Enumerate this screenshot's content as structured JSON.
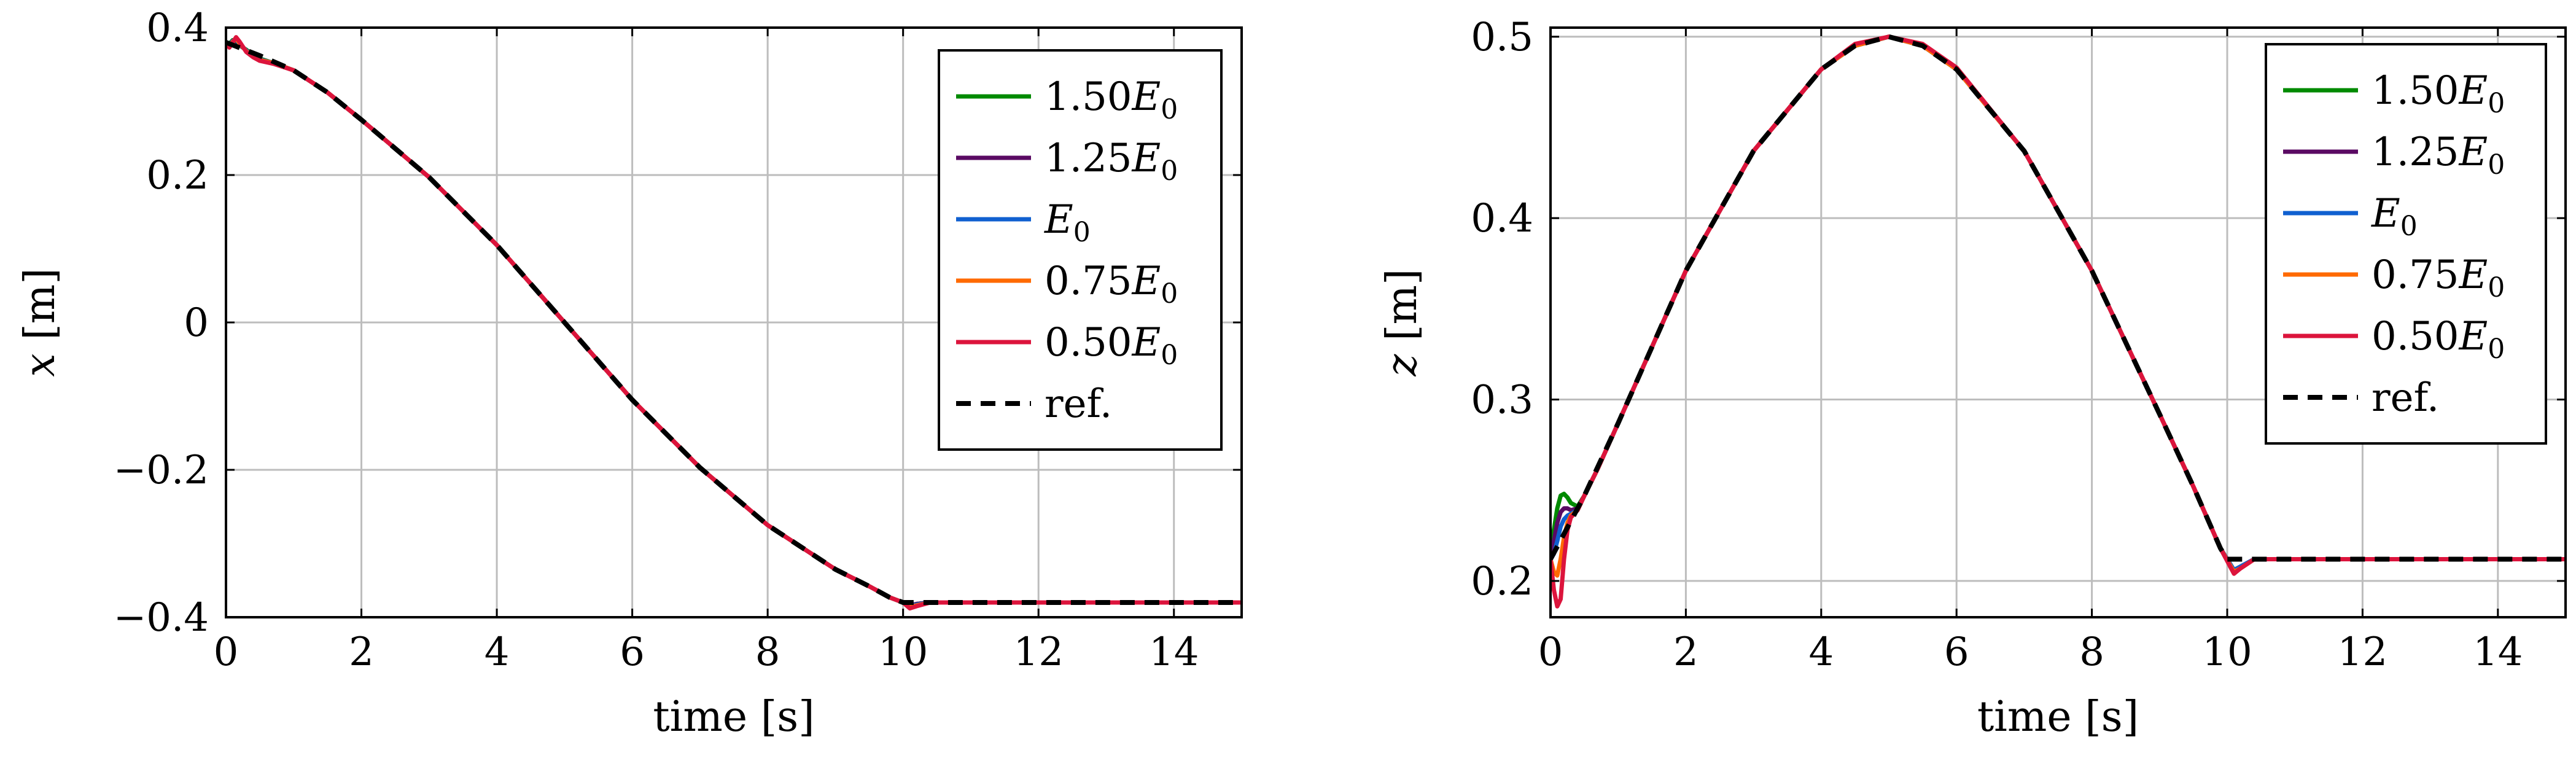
{
  "chart_data": [
    {
      "type": "line",
      "xlabel": "time [s]",
      "ylabel_var": "x",
      "ylabel_unit": " [m]",
      "xlim": [
        0,
        15
      ],
      "ylim": [
        -0.4,
        0.4
      ],
      "xticks": [
        0,
        2,
        4,
        6,
        8,
        10,
        12,
        14
      ],
      "yticks": [
        -0.4,
        -0.2,
        0,
        0.2,
        0.4
      ],
      "ytick_labels": [
        "−0.4",
        "−0.2",
        "0",
        "0.2",
        "0.4"
      ],
      "grid": true,
      "legend_position": "top-right",
      "series": [
        {
          "name": "1.50E0",
          "label_main": "1.50",
          "label_var": "E",
          "label_sub": "0",
          "color": "#008a00",
          "dash": false,
          "x": [
            0,
            0.05,
            0.1,
            0.15,
            0.2,
            0.3,
            0.4,
            0.5,
            0.7,
            1,
            1.5,
            2,
            3,
            4,
            5,
            6,
            7,
            8,
            9,
            9.5,
            9.8,
            10,
            10.1,
            10.2,
            10.4,
            11,
            12,
            13,
            14,
            15
          ],
          "y": [
            0.38,
            0.378,
            0.383,
            0.382,
            0.376,
            0.37,
            0.362,
            0.358,
            0.352,
            0.342,
            0.312,
            0.275,
            0.197,
            0.105,
            0.0,
            -0.105,
            -0.197,
            -0.275,
            -0.335,
            -0.358,
            -0.373,
            -0.38,
            -0.384,
            -0.382,
            -0.38,
            -0.38,
            -0.38,
            -0.38,
            -0.38,
            -0.38
          ]
        },
        {
          "name": "1.25E0",
          "label_main": "1.25",
          "label_var": "E",
          "label_sub": "0",
          "color": "#5a0a63",
          "dash": false,
          "x": [
            0,
            0.05,
            0.1,
            0.15,
            0.2,
            0.3,
            0.4,
            0.5,
            0.7,
            1,
            1.5,
            2,
            3,
            4,
            5,
            6,
            7,
            8,
            9,
            9.5,
            9.8,
            10,
            10.1,
            10.2,
            10.4,
            11,
            12,
            13,
            14,
            15
          ],
          "y": [
            0.38,
            0.377,
            0.382,
            0.383,
            0.377,
            0.369,
            0.362,
            0.357,
            0.352,
            0.342,
            0.312,
            0.275,
            0.197,
            0.105,
            0.0,
            -0.105,
            -0.197,
            -0.275,
            -0.335,
            -0.358,
            -0.373,
            -0.38,
            -0.384,
            -0.382,
            -0.38,
            -0.38,
            -0.38,
            -0.38,
            -0.38,
            -0.38
          ]
        },
        {
          "name": "E0",
          "label_main": "",
          "label_var": "E",
          "label_sub": "0",
          "color": "#1060d0",
          "dash": false,
          "x": [
            0,
            0.05,
            0.1,
            0.15,
            0.2,
            0.3,
            0.4,
            0.5,
            0.7,
            1,
            1.5,
            2,
            3,
            4,
            5,
            6,
            7,
            8,
            9,
            9.5,
            9.8,
            10,
            10.1,
            10.2,
            10.4,
            11,
            12,
            13,
            14,
            15
          ],
          "y": [
            0.38,
            0.376,
            0.382,
            0.384,
            0.378,
            0.369,
            0.361,
            0.357,
            0.352,
            0.342,
            0.312,
            0.275,
            0.197,
            0.105,
            0.0,
            -0.105,
            -0.197,
            -0.275,
            -0.335,
            -0.358,
            -0.373,
            -0.38,
            -0.385,
            -0.383,
            -0.38,
            -0.38,
            -0.38,
            -0.38,
            -0.38,
            -0.38
          ]
        },
        {
          "name": "0.75E0",
          "label_main": "0.75",
          "label_var": "E",
          "label_sub": "0",
          "color": "#ff6a00",
          "dash": false,
          "x": [
            0,
            0.05,
            0.1,
            0.15,
            0.2,
            0.3,
            0.4,
            0.5,
            0.7,
            1,
            1.5,
            2,
            3,
            4,
            5,
            6,
            7,
            8,
            9,
            9.5,
            9.8,
            10,
            10.1,
            10.2,
            10.4,
            11,
            12,
            13,
            14,
            15
          ],
          "y": [
            0.38,
            0.375,
            0.381,
            0.385,
            0.379,
            0.368,
            0.361,
            0.356,
            0.352,
            0.342,
            0.312,
            0.275,
            0.197,
            0.105,
            0.0,
            -0.105,
            -0.197,
            -0.275,
            -0.335,
            -0.358,
            -0.373,
            -0.38,
            -0.386,
            -0.384,
            -0.38,
            -0.38,
            -0.38,
            -0.38,
            -0.38,
            -0.38
          ]
        },
        {
          "name": "0.50E0",
          "label_main": "0.50",
          "label_var": "E",
          "label_sub": "0",
          "color": "#dc143c",
          "dash": false,
          "x": [
            0,
            0.05,
            0.1,
            0.15,
            0.2,
            0.3,
            0.4,
            0.5,
            0.7,
            1,
            1.5,
            2,
            3,
            4,
            5,
            6,
            7,
            8,
            9,
            9.5,
            9.8,
            10,
            10.1,
            10.2,
            10.4,
            11,
            12,
            13,
            14,
            15
          ],
          "y": [
            0.38,
            0.373,
            0.38,
            0.387,
            0.381,
            0.367,
            0.36,
            0.355,
            0.351,
            0.342,
            0.312,
            0.275,
            0.197,
            0.105,
            0.0,
            -0.105,
            -0.197,
            -0.275,
            -0.335,
            -0.358,
            -0.373,
            -0.38,
            -0.388,
            -0.385,
            -0.38,
            -0.38,
            -0.38,
            -0.38,
            -0.38,
            -0.38
          ]
        },
        {
          "name": "ref.",
          "label_main": "ref.",
          "label_var": "",
          "label_sub": "",
          "color": "#000000",
          "dash": true,
          "x": [
            0,
            0.5,
            1,
            1.5,
            2,
            3,
            4,
            5,
            6,
            7,
            8,
            9,
            9.5,
            9.8,
            10,
            10.3,
            11,
            12,
            13,
            14,
            15
          ],
          "y": [
            0.38,
            0.362,
            0.342,
            0.312,
            0.275,
            0.197,
            0.105,
            0.0,
            -0.105,
            -0.197,
            -0.275,
            -0.335,
            -0.358,
            -0.373,
            -0.38,
            -0.38,
            -0.38,
            -0.38,
            -0.38,
            -0.38,
            -0.38
          ]
        }
      ]
    },
    {
      "type": "line",
      "xlabel": "time [s]",
      "ylabel_var": "z",
      "ylabel_unit": " [m]",
      "xlim": [
        0,
        15
      ],
      "ylim": [
        0.18,
        0.505
      ],
      "xticks": [
        0,
        2,
        4,
        6,
        8,
        10,
        12,
        14
      ],
      "yticks": [
        0.2,
        0.3,
        0.4,
        0.5
      ],
      "ytick_labels": [
        "0.2",
        "0.3",
        "0.4",
        "0.5"
      ],
      "grid": true,
      "legend_position": "top-right",
      "series": [
        {
          "name": "1.50E0",
          "label_main": "1.50",
          "label_var": "E",
          "label_sub": "0",
          "color": "#008a00",
          "dash": false,
          "x": [
            0,
            0.05,
            0.1,
            0.15,
            0.2,
            0.25,
            0.3,
            0.4,
            0.5,
            0.7,
            1,
            2,
            3,
            4,
            4.5,
            5,
            5.5,
            6,
            7,
            8,
            9,
            9.5,
            9.9,
            10.1,
            10.2,
            10.4,
            11,
            12,
            13,
            14,
            15
          ],
          "y": [
            0.212,
            0.228,
            0.24,
            0.247,
            0.248,
            0.246,
            0.243,
            0.241,
            0.247,
            0.262,
            0.287,
            0.371,
            0.437,
            0.482,
            0.495,
            0.5,
            0.495,
            0.482,
            0.437,
            0.371,
            0.292,
            0.252,
            0.218,
            0.206,
            0.208,
            0.212,
            0.212,
            0.212,
            0.212,
            0.212,
            0.212
          ]
        },
        {
          "name": "1.25E0",
          "label_main": "1.25",
          "label_var": "E",
          "label_sub": "0",
          "color": "#5a0a63",
          "dash": false,
          "x": [
            0,
            0.05,
            0.1,
            0.15,
            0.2,
            0.25,
            0.3,
            0.4,
            0.5,
            0.7,
            1,
            2,
            3,
            4,
            4.5,
            5,
            5.5,
            6,
            7,
            8,
            9,
            9.5,
            9.9,
            10.1,
            10.2,
            10.4,
            11,
            12,
            13,
            14,
            15
          ],
          "y": [
            0.212,
            0.222,
            0.232,
            0.238,
            0.24,
            0.24,
            0.239,
            0.24,
            0.247,
            0.262,
            0.287,
            0.371,
            0.437,
            0.482,
            0.495,
            0.5,
            0.495,
            0.482,
            0.437,
            0.371,
            0.292,
            0.252,
            0.218,
            0.206,
            0.208,
            0.212,
            0.212,
            0.212,
            0.212,
            0.212,
            0.212
          ]
        },
        {
          "name": "E0",
          "label_main": "",
          "label_var": "E",
          "label_sub": "0",
          "color": "#1060d0",
          "dash": false,
          "x": [
            0,
            0.05,
            0.1,
            0.15,
            0.2,
            0.25,
            0.3,
            0.4,
            0.5,
            0.7,
            1,
            2,
            3,
            4,
            4.5,
            5,
            5.5,
            6,
            7,
            8,
            9,
            9.5,
            9.9,
            10.1,
            10.2,
            10.4,
            11,
            12,
            13,
            14,
            15
          ],
          "y": [
            0.212,
            0.215,
            0.222,
            0.23,
            0.234,
            0.236,
            0.237,
            0.239,
            0.247,
            0.262,
            0.287,
            0.371,
            0.437,
            0.482,
            0.495,
            0.5,
            0.495,
            0.482,
            0.437,
            0.371,
            0.292,
            0.252,
            0.218,
            0.206,
            0.208,
            0.212,
            0.212,
            0.212,
            0.212,
            0.212,
            0.212
          ]
        },
        {
          "name": "0.75E0",
          "label_main": "0.75",
          "label_var": "E",
          "label_sub": "0",
          "color": "#ff6a00",
          "dash": false,
          "x": [
            0,
            0.05,
            0.1,
            0.15,
            0.2,
            0.25,
            0.3,
            0.4,
            0.5,
            0.7,
            1,
            2,
            3,
            4,
            4.5,
            5,
            5.5,
            6,
            7,
            8,
            9,
            9.5,
            9.9,
            10.1,
            10.2,
            10.4,
            11,
            12,
            13,
            14,
            15
          ],
          "y": [
            0.212,
            0.205,
            0.203,
            0.212,
            0.224,
            0.232,
            0.236,
            0.239,
            0.247,
            0.262,
            0.287,
            0.371,
            0.437,
            0.482,
            0.495,
            0.5,
            0.495,
            0.482,
            0.437,
            0.371,
            0.292,
            0.252,
            0.218,
            0.205,
            0.207,
            0.212,
            0.212,
            0.212,
            0.212,
            0.212,
            0.212
          ]
        },
        {
          "name": "0.50E0",
          "label_main": "0.50",
          "label_var": "E",
          "label_sub": "0",
          "color": "#dc143c",
          "dash": false,
          "x": [
            0,
            0.05,
            0.1,
            0.15,
            0.2,
            0.25,
            0.3,
            0.4,
            0.5,
            0.7,
            1,
            2,
            3,
            4,
            4.5,
            5,
            5.5,
            6,
            7,
            8,
            9,
            9.5,
            9.9,
            10.1,
            10.2,
            10.4,
            11,
            12,
            13,
            14,
            15
          ],
          "y": [
            0.212,
            0.195,
            0.186,
            0.19,
            0.212,
            0.228,
            0.235,
            0.239,
            0.247,
            0.262,
            0.287,
            0.371,
            0.437,
            0.482,
            0.496,
            0.5,
            0.496,
            0.483,
            0.437,
            0.371,
            0.292,
            0.252,
            0.218,
            0.204,
            0.207,
            0.212,
            0.212,
            0.212,
            0.212,
            0.212,
            0.212
          ]
        },
        {
          "name": "ref.",
          "label_main": "ref.",
          "label_var": "",
          "label_sub": "",
          "color": "#000000",
          "dash": true,
          "x": [
            0,
            0.5,
            1,
            2,
            3,
            4,
            4.5,
            5,
            5.5,
            6,
            7,
            8,
            9,
            9.5,
            9.9,
            10,
            10.1,
            10.3,
            11,
            12,
            13,
            14,
            15
          ],
          "y": [
            0.212,
            0.247,
            0.287,
            0.371,
            0.437,
            0.482,
            0.495,
            0.5,
            0.495,
            0.482,
            0.437,
            0.371,
            0.292,
            0.252,
            0.218,
            0.212,
            0.212,
            0.212,
            0.212,
            0.212,
            0.212,
            0.212,
            0.212
          ]
        }
      ]
    }
  ]
}
